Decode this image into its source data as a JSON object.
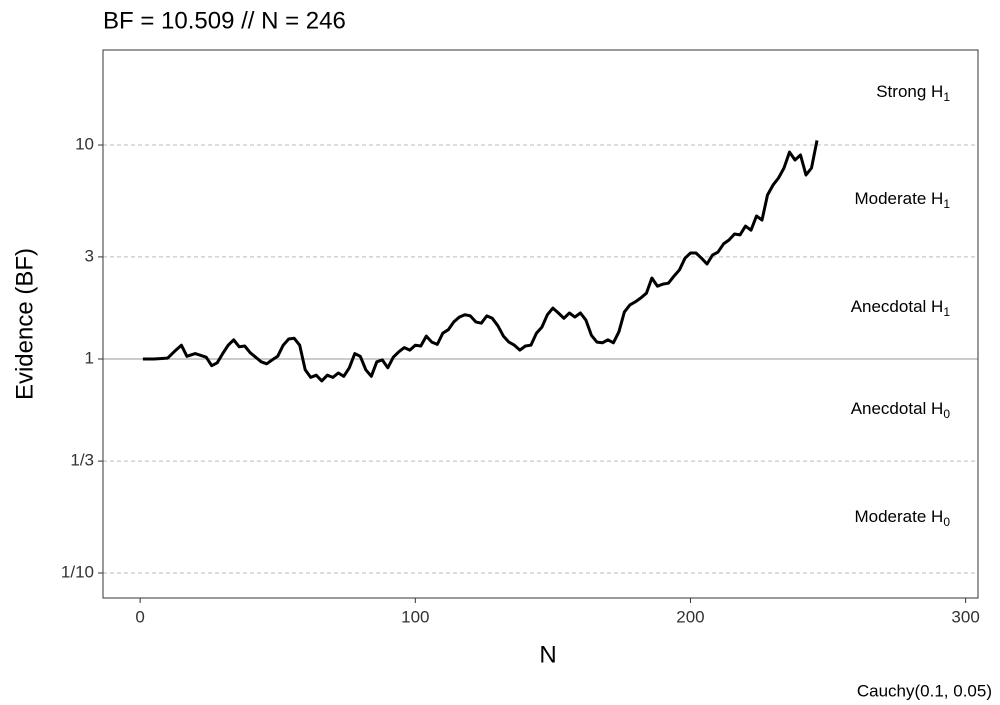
{
  "chart_data": {
    "type": "line",
    "title": "BF = 10.509 // N = 246",
    "xlabel": "N",
    "ylabel": "Evidence (BF)",
    "caption": "Cauchy(0.1, 0.05)",
    "log_y": true,
    "grid": true,
    "hline": 1,
    "color": "#000000",
    "xlim": [
      -13.5,
      304.5
    ],
    "xticks": [
      0,
      100,
      200,
      300
    ],
    "ylim": [
      0.0764,
      27.8
    ],
    "yticks": [
      {
        "value": 0.1,
        "label": "1/10"
      },
      {
        "value": 0.3333,
        "label": "1/3"
      },
      1,
      3,
      10
    ],
    "annotations": [
      {
        "text": "Strong H",
        "sub": "1"
      },
      {
        "text": "Moderate H",
        "sub": "1"
      },
      {
        "text": "Anecdotal H",
        "sub": "1"
      },
      {
        "text": "Anecdotal H",
        "sub": "0"
      },
      {
        "text": "Moderate H",
        "sub": "0"
      }
    ],
    "x": [
      1,
      5,
      10,
      13,
      15,
      17,
      20,
      24,
      26,
      28,
      30,
      32,
      34,
      36,
      38,
      40,
      44,
      46,
      48,
      50,
      52,
      54,
      56,
      58,
      60,
      62,
      64,
      66,
      68,
      70,
      72,
      74,
      76,
      78,
      80,
      82,
      84,
      86,
      88,
      90,
      92,
      94,
      96,
      98,
      100,
      102,
      104,
      106,
      108,
      110,
      112,
      114,
      116,
      118,
      120,
      122,
      124,
      126,
      128,
      130,
      132,
      134,
      136,
      138,
      140,
      142,
      144,
      146,
      148,
      150,
      152,
      154,
      156,
      158,
      160,
      162,
      164,
      166,
      168,
      170,
      172,
      174,
      176,
      178,
      180,
      182,
      184,
      186,
      188,
      190,
      192,
      194,
      196,
      198,
      200,
      202,
      204,
      206,
      208,
      210,
      212,
      214,
      216,
      218,
      220,
      222,
      224,
      226,
      228,
      230,
      232,
      234,
      236,
      238,
      240,
      242,
      244,
      246
    ],
    "values": [
      1.0,
      1.0,
      1.01,
      1.1,
      1.16,
      1.03,
      1.06,
      1.02,
      0.93,
      0.96,
      1.06,
      1.16,
      1.23,
      1.14,
      1.15,
      1.07,
      0.97,
      0.95,
      0.99,
      1.03,
      1.16,
      1.24,
      1.25,
      1.16,
      0.89,
      0.82,
      0.84,
      0.79,
      0.84,
      0.82,
      0.86,
      0.83,
      0.91,
      1.06,
      1.03,
      0.89,
      0.83,
      0.97,
      0.99,
      0.91,
      1.02,
      1.08,
      1.13,
      1.1,
      1.16,
      1.15,
      1.28,
      1.2,
      1.17,
      1.32,
      1.37,
      1.49,
      1.57,
      1.61,
      1.59,
      1.49,
      1.47,
      1.59,
      1.55,
      1.43,
      1.28,
      1.2,
      1.16,
      1.1,
      1.15,
      1.16,
      1.32,
      1.41,
      1.61,
      1.73,
      1.64,
      1.55,
      1.64,
      1.57,
      1.64,
      1.52,
      1.29,
      1.2,
      1.19,
      1.23,
      1.19,
      1.34,
      1.66,
      1.79,
      1.85,
      1.93,
      2.03,
      2.39,
      2.19,
      2.24,
      2.26,
      2.44,
      2.61,
      2.96,
      3.13,
      3.13,
      2.96,
      2.78,
      3.06,
      3.16,
      3.45,
      3.6,
      3.84,
      3.8,
      4.18,
      4.0,
      4.66,
      4.46,
      5.84,
      6.5,
      7.01,
      7.81,
      9.27,
      8.51,
      8.98,
      7.24,
      7.81,
      10.509
    ]
  }
}
